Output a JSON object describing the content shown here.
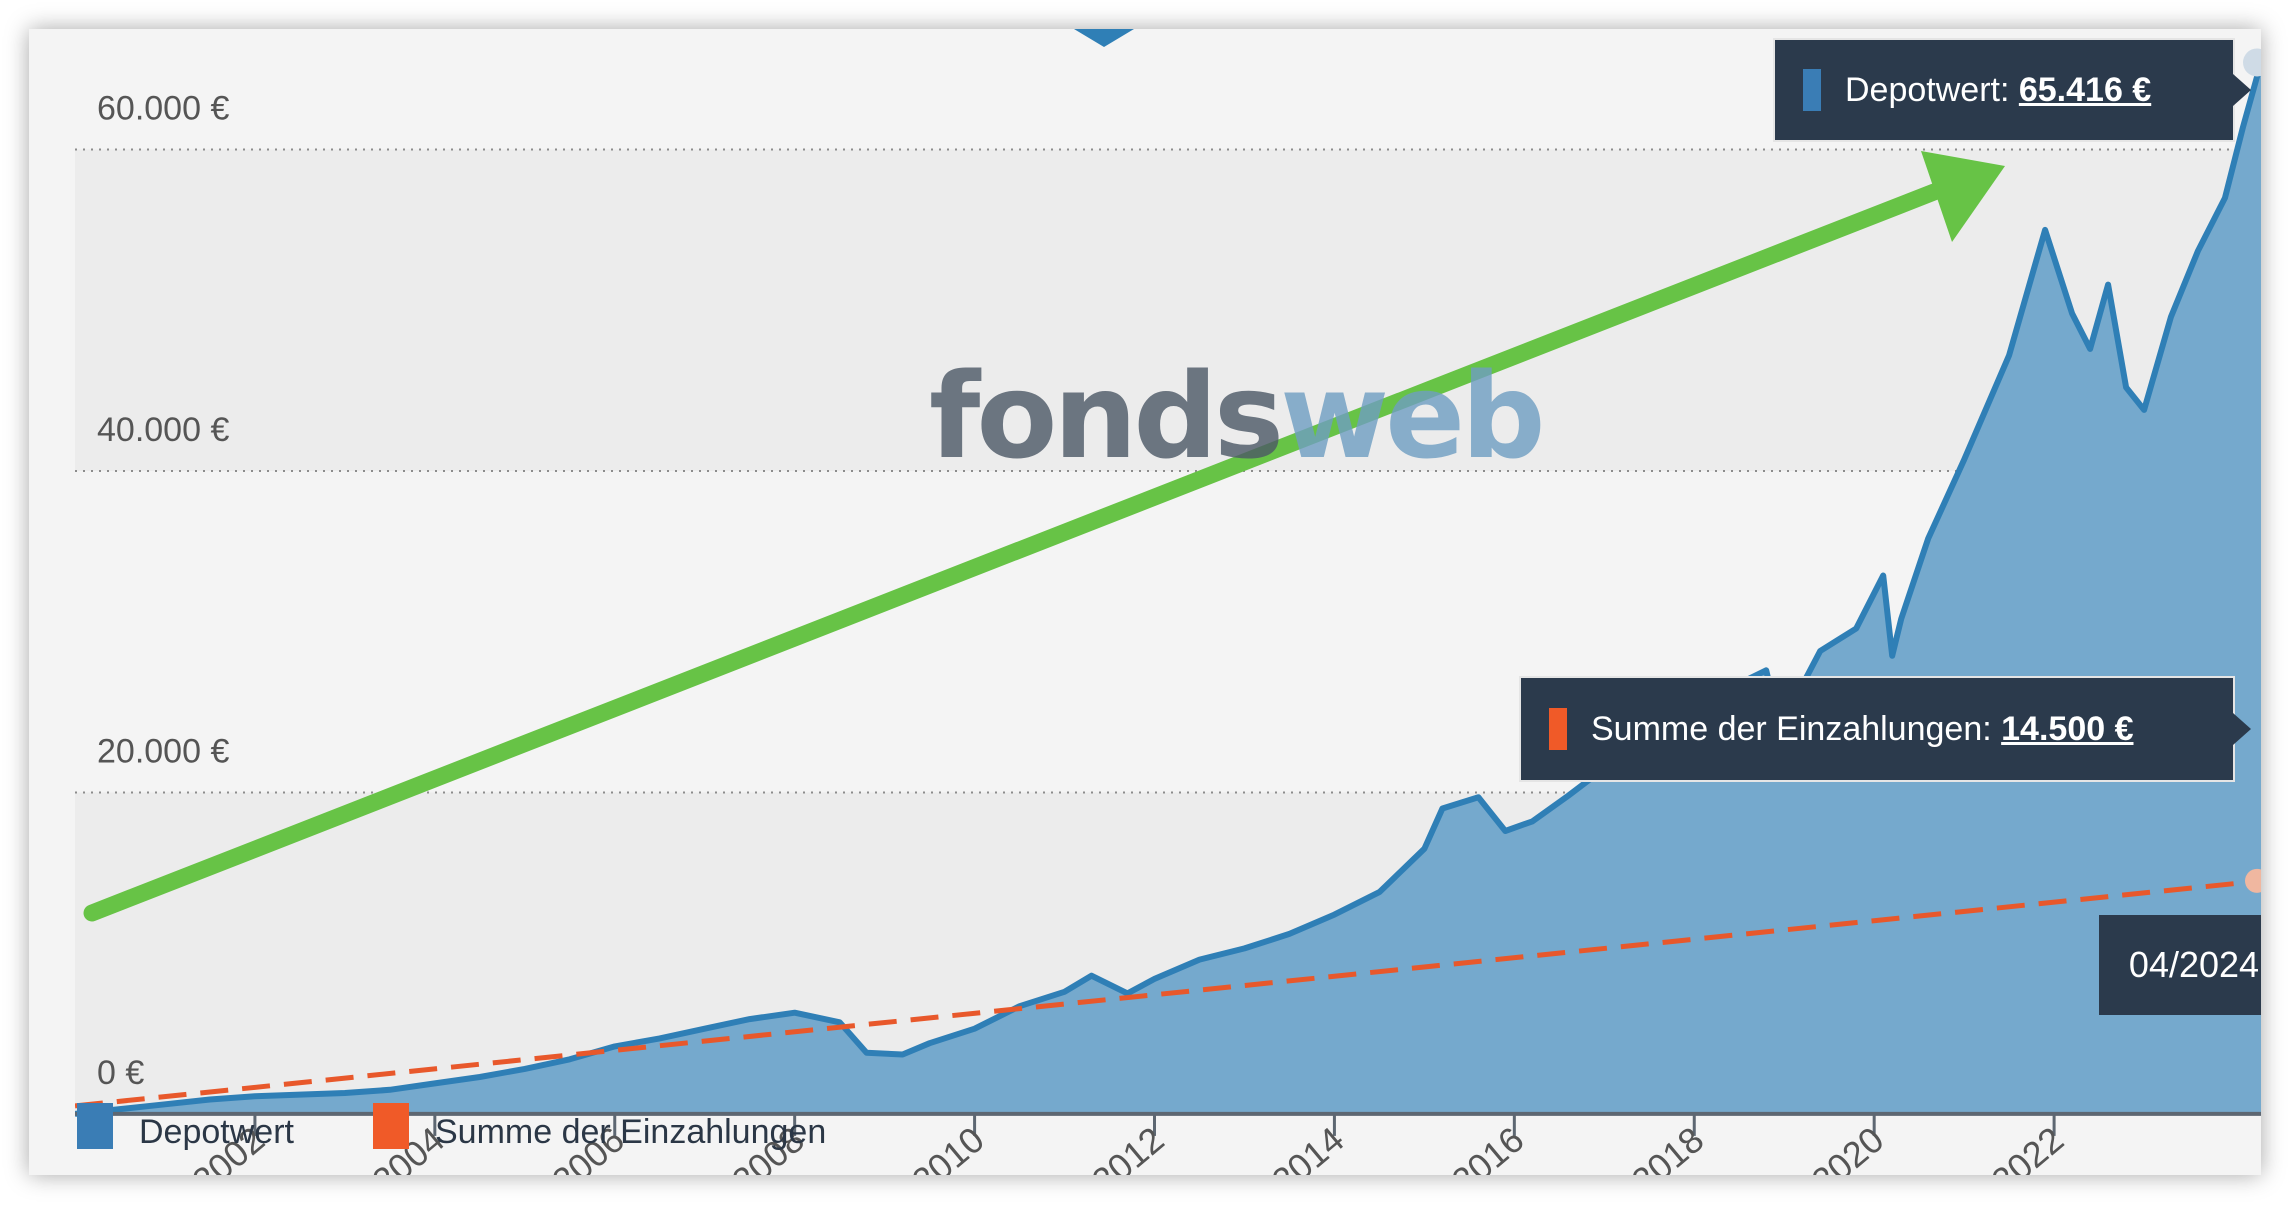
{
  "watermark": {
    "part1": "fonds",
    "part2": "web"
  },
  "tooltips": {
    "depot": {
      "label": "Depotwert:",
      "value": "65.416 €"
    },
    "einzahlungen": {
      "label": "Summe der Einzahlungen:",
      "value": "14.500 €"
    }
  },
  "date_label": "04/2024",
  "legend": [
    {
      "label": "Depotwert",
      "color": "#3a7db5"
    },
    {
      "label": "Summe der Einzahlungen",
      "color": "#f05a28"
    }
  ],
  "colors": {
    "area_fill": "#75a9cd",
    "area_line": "#2f7fb6",
    "deposit_line": "#e8582b",
    "arrow": "#67c346"
  },
  "chart_data": {
    "type": "area",
    "y_ticks": [
      "60.000 €",
      "40.000 €",
      "20.000 €",
      "0 €"
    ],
    "y_tick_values": [
      60000,
      40000,
      20000,
      0
    ],
    "x_ticks": [
      "2002",
      "2004",
      "2006",
      "2008",
      "2010",
      "2012",
      "2014",
      "2016",
      "2018",
      "2020",
      "2022"
    ],
    "x_tick_values": [
      2002,
      2004,
      2006,
      2008,
      2010,
      2012,
      2014,
      2016,
      2018,
      2020,
      2022
    ],
    "x_range": [
      2000.0,
      2024.3
    ],
    "y_range": [
      -3800,
      67500
    ],
    "grid": "horizontal dotted",
    "legend_position": "bottom-left",
    "annotation": "green arrow from start to top",
    "series": [
      {
        "name": "Depotwert",
        "style": "area",
        "points": [
          [
            2000.0,
            0
          ],
          [
            2000.5,
            300
          ],
          [
            2001.0,
            600
          ],
          [
            2001.5,
            900
          ],
          [
            2002.0,
            1100
          ],
          [
            2002.5,
            1200
          ],
          [
            2003.0,
            1300
          ],
          [
            2003.5,
            1500
          ],
          [
            2004.0,
            1900
          ],
          [
            2004.5,
            2300
          ],
          [
            2005.0,
            2800
          ],
          [
            2005.5,
            3400
          ],
          [
            2006.0,
            4200
          ],
          [
            2006.5,
            4700
          ],
          [
            2007.0,
            5300
          ],
          [
            2007.5,
            5900
          ],
          [
            2008.0,
            6300
          ],
          [
            2008.5,
            5700
          ],
          [
            2008.8,
            3800
          ],
          [
            2009.2,
            3700
          ],
          [
            2009.5,
            4400
          ],
          [
            2010.0,
            5300
          ],
          [
            2010.5,
            6700
          ],
          [
            2011.0,
            7600
          ],
          [
            2011.3,
            8600
          ],
          [
            2011.7,
            7500
          ],
          [
            2012.0,
            8400
          ],
          [
            2012.5,
            9600
          ],
          [
            2013.0,
            10300
          ],
          [
            2013.5,
            11200
          ],
          [
            2014.0,
            12400
          ],
          [
            2014.5,
            13800
          ],
          [
            2015.0,
            16500
          ],
          [
            2015.2,
            19000
          ],
          [
            2015.6,
            19700
          ],
          [
            2015.9,
            17600
          ],
          [
            2016.2,
            18200
          ],
          [
            2016.6,
            19800
          ],
          [
            2017.0,
            21500
          ],
          [
            2017.5,
            22700
          ],
          [
            2018.0,
            23300
          ],
          [
            2018.4,
            26500
          ],
          [
            2018.8,
            27600
          ],
          [
            2018.95,
            24000
          ],
          [
            2019.4,
            28800
          ],
          [
            2019.8,
            30200
          ],
          [
            2020.1,
            33500
          ],
          [
            2020.2,
            28500
          ],
          [
            2020.3,
            30800
          ],
          [
            2020.6,
            35800
          ],
          [
            2021.0,
            40700
          ],
          [
            2021.5,
            47200
          ],
          [
            2021.9,
            55000
          ],
          [
            2022.2,
            49800
          ],
          [
            2022.4,
            47600
          ],
          [
            2022.6,
            51600
          ],
          [
            2022.8,
            45200
          ],
          [
            2023.0,
            43800
          ],
          [
            2023.3,
            49600
          ],
          [
            2023.6,
            53700
          ],
          [
            2023.9,
            57000
          ],
          [
            2024.1,
            61400
          ],
          [
            2024.3,
            65416
          ]
        ]
      },
      {
        "name": "Summe der Einzahlungen",
        "style": "dashed",
        "points": [
          [
            2000.0,
            500
          ],
          [
            2024.3,
            14500
          ]
        ]
      }
    ]
  }
}
